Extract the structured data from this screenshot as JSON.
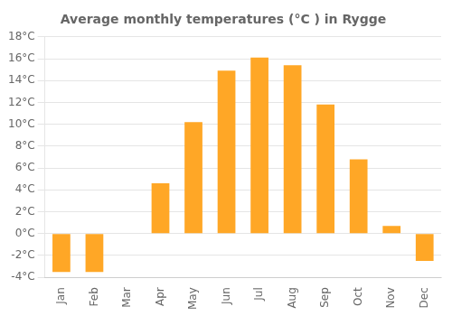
{
  "chart_data": {
    "type": "bar",
    "title": "Average monthly temperatures (°C ) in Rygge",
    "categories": [
      "Jan",
      "Feb",
      "Mar",
      "Apr",
      "May",
      "Jun",
      "Jul",
      "Aug",
      "Sep",
      "Oct",
      "Nov",
      "Dec"
    ],
    "values": [
      -3.5,
      -3.5,
      0.0,
      4.6,
      10.2,
      14.9,
      16.1,
      15.4,
      11.8,
      6.8,
      0.7,
      -2.5
    ],
    "color": "#FFA726",
    "ylim": [
      -4,
      18
    ],
    "yticks": [
      {
        "value": -4,
        "label": "-4°C"
      },
      {
        "value": -2,
        "label": "-2°C"
      },
      {
        "value": 0,
        "label": "0°C"
      },
      {
        "value": 2,
        "label": "2°C"
      },
      {
        "value": 4,
        "label": "4°C"
      },
      {
        "value": 6,
        "label": "6°C"
      },
      {
        "value": 8,
        "label": "8°C"
      },
      {
        "value": 10,
        "label": "10°C"
      },
      {
        "value": 12,
        "label": "12°C"
      },
      {
        "value": 14,
        "label": "14°C"
      },
      {
        "value": 16,
        "label": "16°C"
      },
      {
        "value": 18,
        "label": "18°C"
      }
    ],
    "grid": true
  }
}
